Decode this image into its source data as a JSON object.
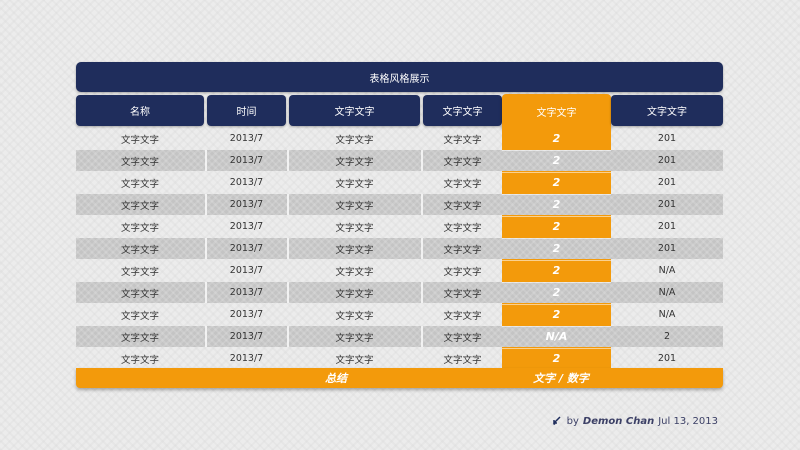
{
  "title": "表格风格展示",
  "headers": [
    "名称",
    "时间",
    "文字文字",
    "文字文字",
    "文字文字",
    "文字文字"
  ],
  "rows": [
    [
      "文字文字",
      "2013/7",
      "文字文字",
      "文字文字",
      "2",
      "201"
    ],
    [
      "文字文字",
      "2013/7",
      "文字文字",
      "文字文字",
      "2",
      "201"
    ],
    [
      "文字文字",
      "2013/7",
      "文字文字",
      "文字文字",
      "2",
      "201"
    ],
    [
      "文字文字",
      "2013/7",
      "文字文字",
      "文字文字",
      "2",
      "201"
    ],
    [
      "文字文字",
      "2013/7",
      "文字文字",
      "文字文字",
      "2",
      "201"
    ],
    [
      "文字文字",
      "2013/7",
      "文字文字",
      "文字文字",
      "2",
      "201"
    ],
    [
      "文字文字",
      "2013/7",
      "文字文字",
      "文字文字",
      "2",
      "N/A"
    ],
    [
      "文字文字",
      "2013/7",
      "文字文字",
      "文字文字",
      "2",
      "N/A"
    ],
    [
      "文字文字",
      "2013/7",
      "文字文字",
      "文字文字",
      "2",
      "N/A"
    ],
    [
      "文字文字",
      "2013/7",
      "文字文字",
      "文字文字",
      "N/A",
      "2"
    ],
    [
      "文字文字",
      "2013/7",
      "文字文字",
      "文字文字",
      "2",
      "201"
    ]
  ],
  "summary": {
    "label": "总结",
    "value": "文字 / 数字"
  },
  "footer": {
    "by": "by",
    "author": "Demon Chan",
    "date": "Jul 13, 2013",
    "icon": "cursor-arrow-icon"
  },
  "colors": {
    "navy": "#1f2d5c",
    "orange": "#f39a0b"
  }
}
